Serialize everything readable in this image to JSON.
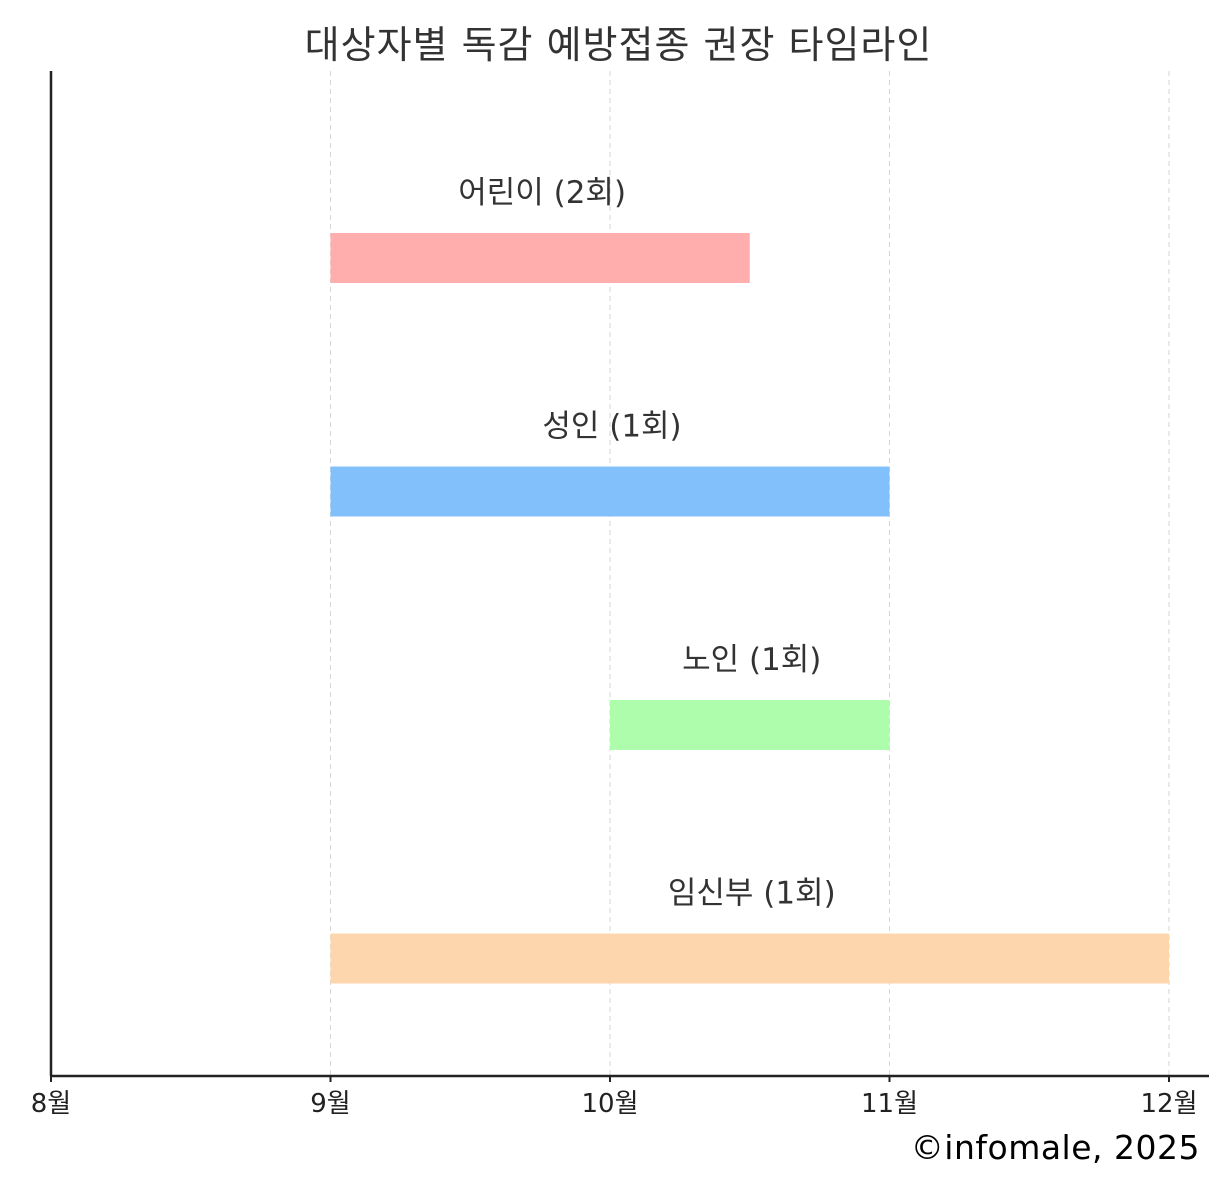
{
  "chart_data": {
    "type": "bar",
    "orientation": "horizontal",
    "title": "대상자별 독감 예방접종 권장 타임라인",
    "xlabel": "",
    "ylabel": "",
    "x_ticks": [
      "8월",
      "9월",
      "10월",
      "11월",
      "12월"
    ],
    "xlim": [
      8,
      12.15
    ],
    "grid": "vertical dashed",
    "series": [
      {
        "label": "어린이 (2회)",
        "start": 9,
        "end": 10.5,
        "color": "#ffadad"
      },
      {
        "label": "성인 (1회)",
        "start": 9,
        "end": 11,
        "color": "#82c0fc"
      },
      {
        "label": "노인 (1회)",
        "start": 10,
        "end": 11,
        "color": "#adfdac"
      },
      {
        "label": "임신부 (1회)",
        "start": 9,
        "end": 12,
        "color": "#fed6ad"
      }
    ]
  },
  "credit": "©infomale, 2025"
}
